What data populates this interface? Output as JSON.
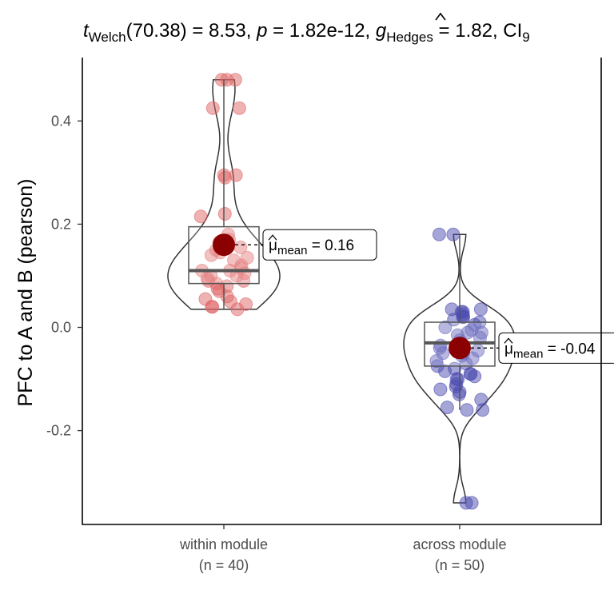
{
  "chart_data": {
    "type": "violin-box-scatter",
    "title": {
      "stat_name": "t",
      "stat_sub": "Welch",
      "df": "(70.38)",
      "stat_value": "8.53",
      "p_label": "p",
      "p_value": "1.82e-12",
      "effect_label": "g",
      "effect_sub": "Hedges",
      "effect_value": "1.82",
      "ci_label": "CI",
      "ci_sub": "9"
    },
    "ylabel": "PFC to A and B (pearson)",
    "ylim": [
      -0.38,
      0.52
    ],
    "yticks": [
      -0.2,
      0.0,
      0.2,
      0.4
    ],
    "ytick_labels": [
      "-0.2",
      "0.0",
      "0.2",
      "0.4"
    ],
    "mean_label_prefix": "mean",
    "groups": [
      {
        "name": "within module",
        "n_label": "(n = 40)",
        "color": "#e06666",
        "mean": 0.16,
        "mean_label": "0.16",
        "median": 0.11,
        "q1": 0.085,
        "q3": 0.195,
        "whisker_low": 0.035,
        "whisker_high": 0.48,
        "points": [
          0.48,
          0.48,
          0.48,
          0.425,
          0.425,
          0.295,
          0.295,
          0.29,
          0.22,
          0.215,
          0.18,
          0.17,
          0.165,
          0.155,
          0.15,
          0.145,
          0.14,
          0.135,
          0.13,
          0.12,
          0.115,
          0.11,
          0.11,
          0.105,
          0.1,
          0.1,
          0.095,
          0.09,
          0.09,
          0.085,
          0.08,
          0.075,
          0.07,
          0.06,
          0.055,
          0.05,
          0.045,
          0.04,
          0.04,
          0.035
        ]
      },
      {
        "name": "across module",
        "n_label": "(n = 50)",
        "color": "#4b4bb0",
        "mean": -0.04,
        "mean_label": "-0.04",
        "median": -0.03,
        "q1": -0.075,
        "q3": 0.01,
        "whisker_low": -0.16,
        "whisker_high": 0.18,
        "points": [
          0.18,
          0.18,
          0.035,
          0.035,
          0.03,
          0.03,
          0.025,
          0.02,
          0.02,
          0.015,
          0.01,
          0.005,
          0.0,
          -0.005,
          -0.01,
          -0.01,
          -0.015,
          -0.02,
          -0.025,
          -0.03,
          -0.03,
          -0.035,
          -0.04,
          -0.04,
          -0.045,
          -0.05,
          -0.05,
          -0.055,
          -0.06,
          -0.065,
          -0.07,
          -0.075,
          -0.08,
          -0.085,
          -0.09,
          -0.09,
          -0.095,
          -0.1,
          -0.1,
          -0.11,
          -0.115,
          -0.12,
          -0.125,
          -0.13,
          -0.14,
          -0.155,
          -0.16,
          -0.16,
          -0.34,
          -0.34
        ]
      }
    ]
  }
}
